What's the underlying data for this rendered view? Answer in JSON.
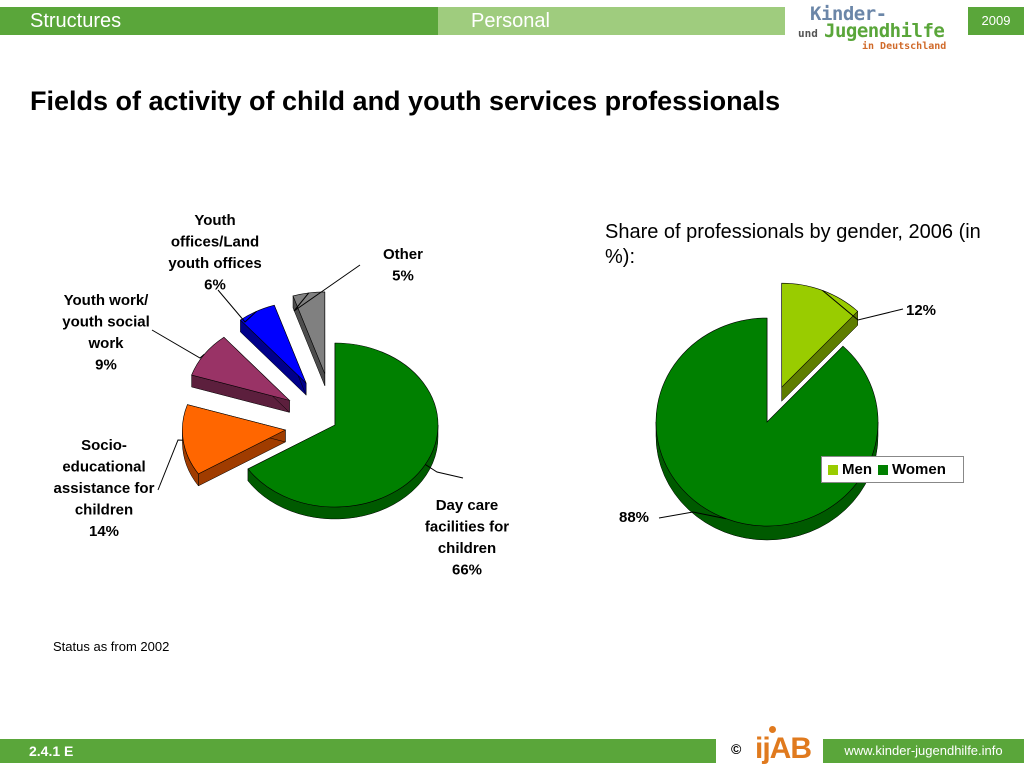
{
  "header": {
    "tab_left": "Structures",
    "tab_right": "Personal",
    "logo_line1": "Kinder-",
    "logo_line2a": "und",
    "logo_line2": "Jugendhilfe",
    "logo_line3": "in Deutschland",
    "year": "2009"
  },
  "title": "Fields of activity of child and youth services professionals",
  "subtitle": "Share of professionals by gender, 2006 (in %):",
  "note": "Status as from 2002",
  "footer": {
    "slide_number": "2.4.1 E",
    "copyright": "©",
    "logo_text": "ijAB",
    "url": "www.kinder-jugendhilfe.info"
  },
  "colors": {
    "brand_green": "#5aa63a",
    "brand_light_green": "#9fcc7e",
    "accent_orange": "#e07a1e"
  },
  "chart_data": [
    {
      "type": "pie",
      "title": "",
      "series": [
        {
          "slices": [
            {
              "label_lines": [
                "Day care",
                "facilities for",
                "children",
                "66%"
              ],
              "value": 66,
              "color": "#008000",
              "side": "#005a00"
            },
            {
              "label_lines": [
                "Socio-",
                "educational",
                "assistance for",
                "children",
                "14%"
              ],
              "value": 14,
              "color": "#ff6600",
              "side": "#a03c00"
            },
            {
              "label_lines": [
                "Youth work/",
                "youth social",
                "work",
                "9%"
              ],
              "value": 9,
              "color": "#993366",
              "side": "#5c1f3d"
            },
            {
              "label_lines": [
                "Youth",
                "offices/Land",
                "youth offices",
                "6%"
              ],
              "value": 6,
              "color": "#0000ff",
              "side": "#00008a"
            },
            {
              "label_lines": [
                "Other",
                "5%"
              ],
              "value": 5,
              "color": "#808080",
              "side": "#4d4d4d"
            }
          ]
        }
      ]
    },
    {
      "type": "pie",
      "title": "Share of professionals by gender, 2006 (in %):",
      "legend": {
        "position": "right",
        "entries": [
          {
            "name": "Men",
            "color": "#99cc00"
          },
          {
            "name": "Women",
            "color": "#008000"
          }
        ]
      },
      "series": [
        {
          "slices": [
            {
              "name": "Men",
              "label_lines": [
                "12%"
              ],
              "value": 12,
              "color": "#99cc00",
              "side": "#5e7d00"
            },
            {
              "name": "Women",
              "label_lines": [
                "88%"
              ],
              "value": 88,
              "color": "#008000",
              "side": "#005a00"
            }
          ]
        }
      ]
    }
  ]
}
